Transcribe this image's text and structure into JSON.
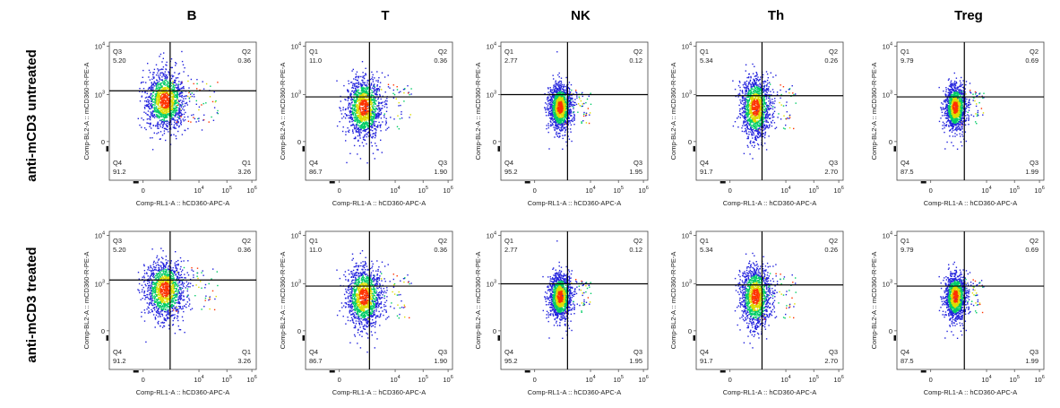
{
  "figure": {
    "column_titles": [
      "B",
      "T",
      "NK",
      "Th",
      "Treg"
    ],
    "row_titles": [
      "anti-mCD3 untreated",
      "anti-mCD3 treated"
    ]
  },
  "axes": {
    "xlabel": "Comp-RL1-A :: hCD360-APC-A",
    "ylabel": "Comp-BL2-A :: mCD360-R-PE-A",
    "x_ticks": [
      {
        "base": "0",
        "exp": ""
      },
      {
        "base": "10",
        "exp": "4"
      },
      {
        "base": "10",
        "exp": "5"
      },
      {
        "base": "10",
        "exp": "6"
      }
    ],
    "y_ticks": [
      {
        "base": "0",
        "exp": ""
      },
      {
        "base": "10",
        "exp": "3"
      },
      {
        "base": "10",
        "exp": "4"
      }
    ],
    "x_scale": "biexponential",
    "y_scale": "biexponential"
  },
  "colors": {
    "density_low": "#2222dd",
    "density_mid": "#00cc66",
    "density_high_mid": "#dddd00",
    "density_high": "#ff3300",
    "gate_line": "#000000"
  },
  "chart_data": [
    {
      "type": "scatter",
      "row": "anti-mCD3 untreated",
      "column": "B",
      "quadrant_labels": [
        "Q3",
        "Q2",
        "Q4",
        "Q1"
      ],
      "quadrant_values": [
        "5.20",
        "0.36",
        "91.2",
        "3.26"
      ],
      "cluster_center": [
        200,
        600
      ],
      "spread": [
        0.55,
        0.38
      ],
      "gate_x": 800,
      "gate_y": 1200
    },
    {
      "type": "scatter",
      "row": "anti-mCD3 untreated",
      "column": "T",
      "quadrant_labels": [
        "Q1",
        "Q2",
        "Q4",
        "Q3"
      ],
      "quadrant_values": [
        "11.0",
        "0.36",
        "86.7",
        "1.90"
      ],
      "cluster_center": [
        400,
        300
      ],
      "spread": [
        0.5,
        0.4
      ],
      "gate_x": 1200,
      "gate_y": 800
    },
    {
      "type": "scatter",
      "row": "anti-mCD3 untreated",
      "column": "NK",
      "quadrant_labels": [
        "Q1",
        "Q2",
        "Q4",
        "Q3"
      ],
      "quadrant_values": [
        "2.77",
        "0.12",
        "95.2",
        "1.95"
      ],
      "cluster_center": [
        500,
        300
      ],
      "spread": [
        0.32,
        0.3
      ],
      "gate_x": 1500,
      "gate_y": 1000
    },
    {
      "type": "scatter",
      "row": "anti-mCD3 untreated",
      "column": "Th",
      "quadrant_labels": [
        "Q1",
        "Q2",
        "Q4",
        "Q3"
      ],
      "quadrant_values": [
        "5.34",
        "0.26",
        "91.7",
        "2.70"
      ],
      "cluster_center": [
        500,
        300
      ],
      "spread": [
        0.42,
        0.4
      ],
      "gate_x": 1400,
      "gate_y": 900
    },
    {
      "type": "scatter",
      "row": "anti-mCD3 untreated",
      "column": "Treg",
      "quadrant_labels": [
        "Q1",
        "Q2",
        "Q4",
        "Q3"
      ],
      "quadrant_values": [
        "9.79",
        "0.69",
        "87.5",
        "1.99"
      ],
      "cluster_center": [
        400,
        300
      ],
      "spread": [
        0.3,
        0.3
      ],
      "gate_x": 1600,
      "gate_y": 800
    },
    {
      "type": "scatter",
      "row": "anti-mCD3 treated",
      "column": "B",
      "quadrant_labels": [
        "Q3",
        "Q2",
        "Q4",
        "Q1"
      ],
      "quadrant_values": [
        "5.20",
        "0.36",
        "91.2",
        "3.26"
      ],
      "cluster_center": [
        200,
        600
      ],
      "spread": [
        0.55,
        0.38
      ],
      "gate_x": 800,
      "gate_y": 1200
    },
    {
      "type": "scatter",
      "row": "anti-mCD3 treated",
      "column": "T",
      "quadrant_labels": [
        "Q1",
        "Q2",
        "Q4",
        "Q3"
      ],
      "quadrant_values": [
        "11.0",
        "0.36",
        "86.7",
        "1.90"
      ],
      "cluster_center": [
        400,
        300
      ],
      "spread": [
        0.5,
        0.4
      ],
      "gate_x": 1200,
      "gate_y": 800
    },
    {
      "type": "scatter",
      "row": "anti-mCD3 treated",
      "column": "NK",
      "quadrant_labels": [
        "Q1",
        "Q2",
        "Q4",
        "Q3"
      ],
      "quadrant_values": [
        "2.77",
        "0.12",
        "95.2",
        "1.95"
      ],
      "cluster_center": [
        500,
        300
      ],
      "spread": [
        0.32,
        0.3
      ],
      "gate_x": 1500,
      "gate_y": 1000
    },
    {
      "type": "scatter",
      "row": "anti-mCD3 treated",
      "column": "Th",
      "quadrant_labels": [
        "Q1",
        "Q2",
        "Q4",
        "Q3"
      ],
      "quadrant_values": [
        "5.34",
        "0.26",
        "91.7",
        "2.70"
      ],
      "cluster_center": [
        500,
        300
      ],
      "spread": [
        0.42,
        0.4
      ],
      "gate_x": 1400,
      "gate_y": 900
    },
    {
      "type": "scatter",
      "row": "anti-mCD3 treated",
      "column": "Treg",
      "quadrant_labels": [
        "Q1",
        "Q2",
        "Q4",
        "Q3"
      ],
      "quadrant_values": [
        "9.79",
        "0.69",
        "87.5",
        "1.99"
      ],
      "cluster_center": [
        400,
        300
      ],
      "spread": [
        0.3,
        0.3
      ],
      "gate_x": 1600,
      "gate_y": 800
    }
  ]
}
